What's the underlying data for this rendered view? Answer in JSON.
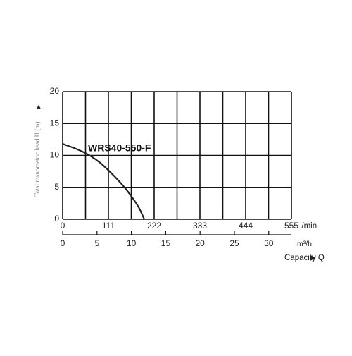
{
  "chart_data": {
    "type": "line",
    "ylabel": "Total manometric head H (m)",
    "xlabel": "Capacity Q",
    "x_unit": "L/min",
    "x2_unit": "m³/h",
    "x": [
      0,
      30,
      60,
      90,
      120,
      150,
      170,
      185,
      198
    ],
    "series": [
      {
        "name": "WRS40-550-F",
        "color": "#222222",
        "values": [
          11.8,
          11.1,
          10.2,
          8.9,
          7.1,
          5.0,
          3.3,
          1.8,
          0
        ]
      }
    ],
    "xlim": [
      0,
      555
    ],
    "xticks": [
      0,
      111,
      222,
      333,
      444,
      555
    ],
    "x2lim": [
      0,
      33.3
    ],
    "x2ticks": [
      0,
      5,
      10,
      15,
      20,
      25,
      30
    ],
    "ylim": [
      0,
      20
    ],
    "yticks": [
      0,
      5,
      10,
      15,
      20
    ],
    "grid": true
  }
}
